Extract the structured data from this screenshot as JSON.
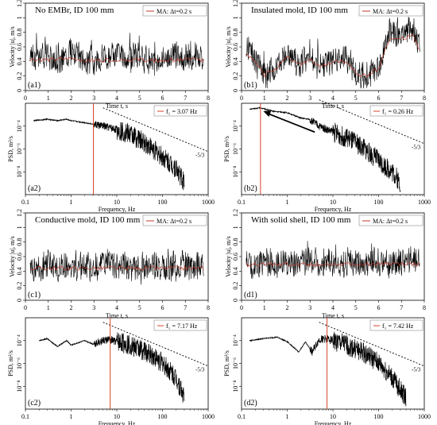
{
  "figure": {
    "colors": {
      "signal": "#000000",
      "moving_average": "#c0392b",
      "frequency_marker": "#d6452a",
      "slope_line": "#000000"
    },
    "slope_label": "-5/3"
  },
  "chart_data": [
    {
      "id": "a1",
      "type": "line",
      "title": "No EMBr, ID 100 mm",
      "panel_label": "(a1)",
      "xlabel": "Time t, s",
      "ylabel": "Velocity |u|, m/s",
      "xlim": [
        0,
        8
      ],
      "ylim": [
        0,
        1.2
      ],
      "xticks": [
        "0",
        "1",
        "2",
        "3",
        "4",
        "5",
        "6",
        "7",
        "8"
      ],
      "yticks": [
        "0",
        "0.2",
        "0.4",
        "0.6",
        "0.8",
        "1",
        "1.2"
      ],
      "legend": [
        {
          "name": "MA:  Δt=0.2 s",
          "style": "line"
        }
      ],
      "series": [
        {
          "name": "signal",
          "x": [
            0.2,
            0.5,
            1,
            1.5,
            2,
            2.5,
            3,
            3.5,
            4,
            4.5,
            5,
            5.5,
            6,
            6.5,
            7,
            7.5,
            7.8
          ],
          "values": [
            0.48,
            0.4,
            0.45,
            0.36,
            0.52,
            0.42,
            0.38,
            0.44,
            0.5,
            0.4,
            0.46,
            0.35,
            0.42,
            0.48,
            0.4,
            0.45,
            0.42
          ]
        },
        {
          "name": "MA:  Δt=0.2 s",
          "x": [
            0.2,
            1,
            2,
            3,
            4,
            5,
            6,
            7,
            7.8
          ],
          "values": [
            0.43,
            0.42,
            0.44,
            0.41,
            0.43,
            0.42,
            0.41,
            0.43,
            0.42
          ]
        }
      ]
    },
    {
      "id": "b1",
      "type": "line",
      "title": "Insulated mold, ID 100 mm",
      "panel_label": "(b1)",
      "xlabel": "Time t, s",
      "ylabel": "Velocity |u|, m/s",
      "xlim": [
        0,
        8
      ],
      "ylim": [
        0,
        1.2
      ],
      "xticks": [
        "0",
        "1",
        "2",
        "3",
        "4",
        "5",
        "6",
        "7",
        "8"
      ],
      "yticks": [
        "0",
        "0.2",
        "0.4",
        "0.6",
        "0.8",
        "1",
        "1.2"
      ],
      "legend": [
        {
          "name": "MA:  Δt=0.2 s",
          "style": "line"
        }
      ],
      "series": [
        {
          "name": "signal",
          "x": [
            0.2,
            0.5,
            1,
            1.5,
            2,
            2.5,
            3,
            3.5,
            4,
            4.5,
            5,
            5.5,
            6,
            6.5,
            7,
            7.5,
            7.8
          ],
          "values": [
            0.55,
            0.45,
            0.2,
            0.3,
            0.5,
            0.35,
            0.45,
            0.3,
            0.4,
            0.45,
            0.22,
            0.18,
            0.3,
            0.8,
            0.75,
            0.85,
            0.55
          ]
        },
        {
          "name": "MA:  Δt=0.2 s",
          "x": [
            0.2,
            0.5,
            1,
            1.5,
            2,
            2.5,
            3,
            3.5,
            4,
            4.5,
            5,
            5.5,
            6,
            6.5,
            7,
            7.5,
            7.8
          ],
          "values": [
            0.52,
            0.42,
            0.22,
            0.3,
            0.45,
            0.36,
            0.42,
            0.32,
            0.4,
            0.4,
            0.24,
            0.2,
            0.32,
            0.72,
            0.7,
            0.78,
            0.55
          ]
        }
      ]
    },
    {
      "id": "a2",
      "type": "line",
      "panel_label": "(a2)",
      "xlabel": "Frequency, Hz",
      "ylabel": "PSD, m²/s",
      "xscale": "log",
      "yscale": "log",
      "xlim": [
        0.1,
        1000
      ],
      "ylim": [
        1e-10,
        0.01
      ],
      "xticks": [
        "0.1",
        "1",
        "10",
        "100",
        "1000"
      ],
      "yticks": [
        "10⁻⁴",
        "10⁻⁶",
        "10⁻⁸"
      ],
      "legend": [
        {
          "name": "f₁ = 3.07 Hz",
          "style": "line"
        }
      ],
      "f1": 3.07,
      "slope": "-5/3",
      "series": [
        {
          "name": "PSD",
          "x": [
            0.15,
            0.3,
            0.5,
            0.8,
            1,
            2,
            3,
            5,
            10,
            20,
            50,
            100,
            200,
            300
          ],
          "values": [
            0.0003,
            0.0004,
            0.0003,
            0.0004,
            0.0003,
            0.0002,
            0.00015,
            0.0001,
            5e-05,
            2e-05,
            2e-06,
            2e-07,
            2e-08,
            1e-09
          ]
        }
      ]
    },
    {
      "id": "b2",
      "type": "line",
      "panel_label": "(b2)",
      "xlabel": "Frequency, Hz",
      "ylabel": "PSD, m²/s",
      "xscale": "log",
      "yscale": "log",
      "xlim": [
        0.1,
        1000
      ],
      "ylim": [
        1e-10,
        0.01
      ],
      "xticks": [
        "0.1",
        "1",
        "10",
        "100",
        "1000"
      ],
      "yticks": [
        "10⁻⁴",
        "10⁻⁶",
        "10⁻⁸"
      ],
      "legend": [
        {
          "name": "f₁ = 0.26 Hz",
          "style": "line"
        }
      ],
      "f1": 0.26,
      "slope": "-5/3",
      "series": [
        {
          "name": "PSD",
          "x": [
            0.15,
            0.26,
            0.5,
            1,
            2,
            3,
            5,
            10,
            20,
            50,
            100,
            200,
            300
          ],
          "values": [
            0.003,
            0.004,
            0.002,
            0.0015,
            0.0005,
            0.0004,
            0.0001,
            3e-05,
            1e-05,
            1e-06,
            1e-07,
            1e-08,
            1e-09
          ]
        }
      ]
    },
    {
      "id": "c1",
      "type": "line",
      "title": "Conductive mold,  ID 100 mm",
      "panel_label": "(c1)",
      "xlabel": "Time t, s",
      "ylabel": "Velocity |u|, m/s",
      "xlim": [
        0,
        8
      ],
      "ylim": [
        0,
        1.2
      ],
      "xticks": [
        "0",
        "1",
        "2",
        "3",
        "4",
        "5",
        "6",
        "7",
        "8"
      ],
      "yticks": [
        "0",
        "0.2",
        "0.4",
        "0.6",
        "0.8",
        "1",
        "1.2"
      ],
      "legend": [
        {
          "name": "MA:  Δt=0.2 s",
          "style": "line"
        }
      ],
      "series": [
        {
          "name": "signal",
          "x": [
            0.2,
            0.5,
            1,
            1.5,
            2,
            2.5,
            3,
            3.5,
            4,
            4.5,
            5,
            5.5,
            6,
            6.5,
            7,
            7.5,
            7.8
          ],
          "values": [
            0.45,
            0.4,
            0.48,
            0.42,
            0.44,
            0.46,
            0.4,
            0.47,
            0.43,
            0.45,
            0.41,
            0.46,
            0.44,
            0.42,
            0.47,
            0.43,
            0.45
          ]
        },
        {
          "name": "MA:  Δt=0.2 s",
          "x": [
            0.2,
            1,
            2,
            3,
            4,
            5,
            6,
            7,
            7.8
          ],
          "values": [
            0.44,
            0.44,
            0.44,
            0.44,
            0.44,
            0.44,
            0.44,
            0.44,
            0.44
          ]
        }
      ]
    },
    {
      "id": "d1",
      "type": "line",
      "title": "With solid shell, ID 100 mm",
      "panel_label": "(d1)",
      "xlabel": "Time t, s",
      "ylabel": "Velocity |u|, m/s",
      "xlim": [
        0,
        8
      ],
      "ylim": [
        0,
        1.2
      ],
      "xticks": [
        "0",
        "1",
        "2",
        "3",
        "4",
        "5",
        "6",
        "7",
        "8"
      ],
      "yticks": [
        "0",
        "0.2",
        "0.4",
        "0.6",
        "0.8",
        "1",
        "1.2"
      ],
      "legend": [
        {
          "name": "MA:  Δt=0.2 s",
          "style": "line"
        }
      ],
      "series": [
        {
          "name": "signal",
          "x": [
            0.2,
            0.5,
            1,
            1.5,
            2,
            2.5,
            3,
            3.5,
            4,
            4.5,
            5,
            5.5,
            6,
            6.5,
            7,
            7.5,
            7.8
          ],
          "values": [
            0.5,
            0.45,
            0.52,
            0.47,
            0.5,
            0.48,
            0.53,
            0.46,
            0.5,
            0.49,
            0.52,
            0.47,
            0.51,
            0.48,
            0.5,
            0.52,
            0.49
          ]
        },
        {
          "name": "MA:  Δt=0.2 s",
          "x": [
            0.2,
            1,
            2,
            3,
            4,
            5,
            6,
            7,
            7.8
          ],
          "values": [
            0.49,
            0.49,
            0.5,
            0.49,
            0.5,
            0.49,
            0.5,
            0.5,
            0.49
          ]
        }
      ]
    },
    {
      "id": "c2",
      "type": "line",
      "panel_label": "(c2)",
      "xlabel": "Frequency, Hz",
      "ylabel": "PSD, m²/s",
      "xscale": "log",
      "yscale": "log",
      "xlim": [
        0.1,
        1000
      ],
      "ylim": [
        1e-10,
        0.01
      ],
      "xticks": [
        "0.1",
        "1",
        "10",
        "100",
        "1000"
      ],
      "yticks": [
        "10⁻⁴",
        "10⁻⁶",
        "10⁻⁸"
      ],
      "legend": [
        {
          "name": "f₁ = 7.17 Hz",
          "style": "line"
        }
      ],
      "f1": 7.17,
      "slope": "-5/3",
      "series": [
        {
          "name": "PSD",
          "x": [
            0.2,
            0.3,
            0.5,
            0.8,
            1,
            2,
            3,
            5,
            7.17,
            10,
            20,
            50,
            100,
            200,
            300
          ],
          "values": [
            0.0001,
            0.00015,
            3e-05,
            0.0001,
            4e-05,
            0.0001,
            5e-05,
            0.0001,
            0.00012,
            8e-05,
            4e-05,
            8e-06,
            1e-06,
            5e-08,
            1e-09
          ]
        }
      ]
    },
    {
      "id": "d2",
      "type": "line",
      "panel_label": "(d2)",
      "xlabel": "Frequency, Hz",
      "ylabel": "PSD, m²/s",
      "xscale": "log",
      "yscale": "log",
      "xlim": [
        0.1,
        1000
      ],
      "ylim": [
        1e-10,
        0.01
      ],
      "xticks": [
        "0.1",
        "1",
        "10",
        "100",
        "1000"
      ],
      "yticks": [
        "10⁻⁴",
        "10⁻⁶",
        "10⁻⁸"
      ],
      "legend": [
        {
          "name": "f₁ = 7.42 Hz",
          "style": "line"
        }
      ],
      "f1": 7.42,
      "slope": "-5/3",
      "series": [
        {
          "name": "PSD",
          "x": [
            0.15,
            0.3,
            0.6,
            1,
            1.8,
            2.5,
            3.5,
            5,
            7.42,
            10,
            20,
            50,
            100,
            200,
            400
          ],
          "values": [
            0.0001,
            0.00015,
            0.0002,
            8e-05,
            1e-05,
            8e-05,
            1e-05,
            0.00012,
            0.00015,
            0.0001,
            4e-05,
            8e-06,
            1e-06,
            5e-08,
            1e-09
          ]
        }
      ]
    }
  ]
}
